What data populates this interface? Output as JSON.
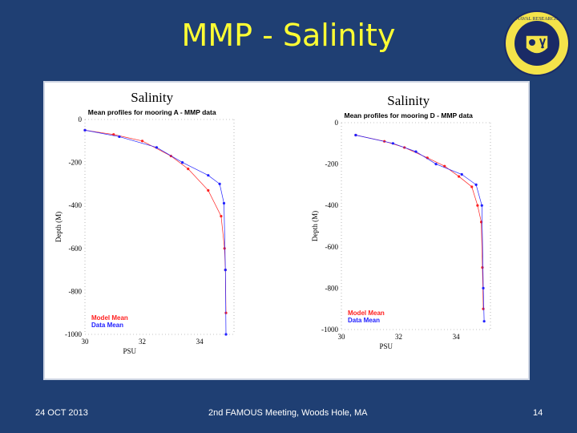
{
  "slide": {
    "title": "MMP - Salinity",
    "footer_left": "24 OCT 2013",
    "footer_center": "2nd FAMOUS Meeting, Woods Hole, MA",
    "footer_right": "14",
    "background": "#1f3f73",
    "title_color": "#ffff33"
  },
  "logo": {
    "icon": "arctic-research-laboratory-seal-icon",
    "lettering": "NAVAL RESEARCH LABORATORY"
  },
  "colors": {
    "model": "#ff2020",
    "data": "#2020ff"
  },
  "chart_data": [
    {
      "type": "line",
      "title": "Salinity",
      "subtitle": "Mean profiles for mooring A - MMP data",
      "xlabel": "PSU",
      "ylabel": "Depth (M)",
      "xlim": [
        30,
        35.2
      ],
      "ylim": [
        -1000,
        0
      ],
      "xticks": [
        "30",
        "32",
        "34"
      ],
      "yticks": [
        "0",
        "-200",
        "-400",
        "-600",
        "-800",
        "-1000"
      ],
      "grid": false,
      "legend_position": "bottom-left",
      "series": [
        {
          "name": "Model Mean",
          "x": [
            30.0,
            31.0,
            32.0,
            33.0,
            33.6,
            34.3,
            34.75,
            34.87,
            34.9,
            34.92
          ],
          "y": [
            -50,
            -70,
            -100,
            -170,
            -230,
            -330,
            -450,
            -600,
            -700,
            -900
          ]
        },
        {
          "name": "Data Mean",
          "x": [
            30.0,
            31.2,
            32.5,
            33.4,
            34.3,
            34.7,
            34.85,
            34.9,
            34.92
          ],
          "y": [
            -50,
            -80,
            -130,
            -200,
            -260,
            -300,
            -390,
            -700,
            -1000
          ]
        }
      ]
    },
    {
      "type": "line",
      "title": "Salinity",
      "subtitle": "Mean profiles for mooring D - MMP data",
      "xlabel": "PSU",
      "ylabel": "Depth (M)",
      "xlim": [
        30,
        35.2
      ],
      "ylim": [
        -1000,
        0
      ],
      "xticks": [
        "30",
        "32",
        "34"
      ],
      "yticks": [
        "0",
        "-200",
        "-400",
        "-600",
        "-800",
        "-1000"
      ],
      "grid": false,
      "legend_position": "bottom-left",
      "series": [
        {
          "name": "Model Mean",
          "x": [
            30.5,
            31.5,
            32.2,
            33.0,
            33.6,
            34.1,
            34.55,
            34.75,
            34.88,
            34.92,
            34.95
          ],
          "y": [
            -60,
            -90,
            -120,
            -170,
            -210,
            -260,
            -310,
            -400,
            -480,
            -700,
            -900
          ]
        },
        {
          "name": "Data Mean",
          "x": [
            30.5,
            31.8,
            32.6,
            33.3,
            34.2,
            34.7,
            34.9,
            34.95,
            34.98
          ],
          "y": [
            -60,
            -100,
            -140,
            -200,
            -250,
            -300,
            -400,
            -800,
            -960
          ]
        }
      ]
    }
  ]
}
